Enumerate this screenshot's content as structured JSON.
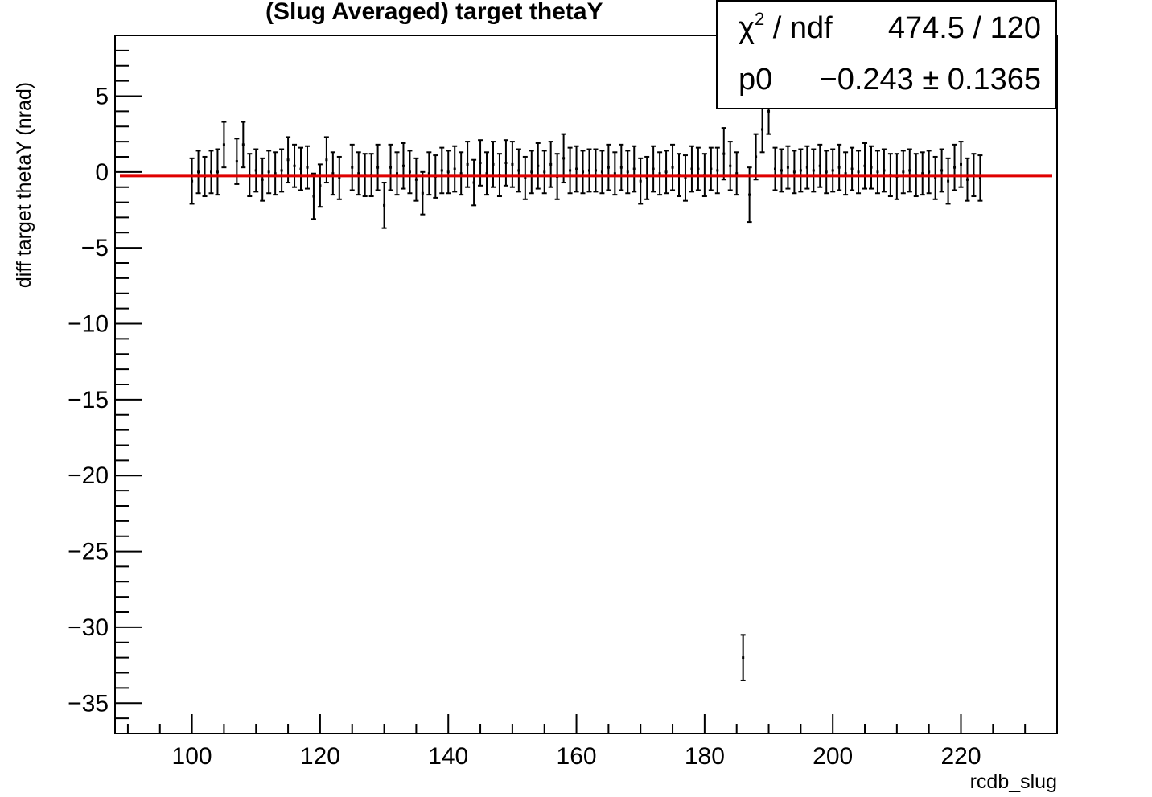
{
  "title": "(Slug Averaged) target thetaY",
  "chart_data": {
    "type": "scatter",
    "xlabel": "rcdb_slug",
    "ylabel": "diff target thetaY (nrad)",
    "xlim": [
      88,
      235
    ],
    "ylim": [
      -37,
      9
    ],
    "xticks": [
      100,
      120,
      140,
      160,
      180,
      200,
      220
    ],
    "yticks": [
      5,
      0,
      -5,
      -10,
      -15,
      -20,
      -25,
      -30,
      -35
    ],
    "ytick_labels": [
      "5",
      "0",
      "−5",
      "−10",
      "−15",
      "−20",
      "−25",
      "−30",
      "−35"
    ],
    "grid": false,
    "series": [
      {
        "points": [
          [
            100,
            -0.6,
            1.5
          ],
          [
            101,
            0.0,
            1.4
          ],
          [
            102,
            -0.3,
            1.3
          ],
          [
            103,
            0.0,
            1.4
          ],
          [
            104,
            0.0,
            1.5
          ],
          [
            105,
            1.8,
            1.5
          ],
          [
            107,
            0.7,
            1.5
          ],
          [
            108,
            1.8,
            1.5
          ],
          [
            109,
            -0.2,
            1.4
          ],
          [
            110,
            0.1,
            1.4
          ],
          [
            111,
            -0.5,
            1.4
          ],
          [
            112,
            0.0,
            1.4
          ],
          [
            113,
            -0.1,
            1.4
          ],
          [
            114,
            0.1,
            1.4
          ],
          [
            115,
            0.8,
            1.5
          ],
          [
            116,
            0.4,
            1.4
          ],
          [
            117,
            0.2,
            1.4
          ],
          [
            118,
            0.3,
            1.4
          ],
          [
            119,
            -1.6,
            1.5
          ],
          [
            120,
            -0.9,
            1.4
          ],
          [
            121,
            0.8,
            1.5
          ],
          [
            122,
            -0.1,
            1.4
          ],
          [
            123,
            -0.4,
            1.4
          ],
          [
            125,
            0.3,
            1.5
          ],
          [
            126,
            -0.1,
            1.4
          ],
          [
            127,
            -0.2,
            1.4
          ],
          [
            128,
            -0.2,
            1.4
          ],
          [
            129,
            0.3,
            1.5
          ],
          [
            130,
            -2.2,
            1.5
          ],
          [
            131,
            0.3,
            1.5
          ],
          [
            132,
            -0.1,
            1.4
          ],
          [
            133,
            0.4,
            1.5
          ],
          [
            134,
            0.0,
            1.4
          ],
          [
            135,
            -0.5,
            1.4
          ],
          [
            136,
            -1.4,
            1.4
          ],
          [
            137,
            -0.1,
            1.4
          ],
          [
            138,
            -0.3,
            1.4
          ],
          [
            139,
            0.1,
            1.5
          ],
          [
            140,
            0.0,
            1.4
          ],
          [
            141,
            0.2,
            1.5
          ],
          [
            142,
            -0.1,
            1.4
          ],
          [
            143,
            0.5,
            1.5
          ],
          [
            144,
            -0.7,
            1.5
          ],
          [
            145,
            0.6,
            1.5
          ],
          [
            146,
            -0.1,
            1.4
          ],
          [
            147,
            0.5,
            1.5
          ],
          [
            148,
            -0.2,
            1.4
          ],
          [
            149,
            0.6,
            1.5
          ],
          [
            150,
            0.5,
            1.5
          ],
          [
            151,
            0.1,
            1.4
          ],
          [
            152,
            -0.4,
            1.4
          ],
          [
            153,
            0.0,
            1.4
          ],
          [
            154,
            0.4,
            1.5
          ],
          [
            155,
            0.0,
            1.4
          ],
          [
            156,
            0.5,
            1.5
          ],
          [
            157,
            -0.3,
            1.5
          ],
          [
            158,
            0.9,
            1.6
          ],
          [
            159,
            0.1,
            1.5
          ],
          [
            160,
            0.2,
            1.5
          ],
          [
            161,
            0.0,
            1.4
          ],
          [
            162,
            0.1,
            1.4
          ],
          [
            163,
            0.1,
            1.4
          ],
          [
            164,
            0.0,
            1.4
          ],
          [
            165,
            0.3,
            1.5
          ],
          [
            166,
            -0.1,
            1.4
          ],
          [
            167,
            0.3,
            1.5
          ],
          [
            168,
            0.0,
            1.4
          ],
          [
            169,
            0.2,
            1.5
          ],
          [
            170,
            -0.6,
            1.5
          ],
          [
            171,
            -0.4,
            1.4
          ],
          [
            172,
            0.2,
            1.5
          ],
          [
            173,
            -0.1,
            1.4
          ],
          [
            174,
            0.0,
            1.4
          ],
          [
            175,
            0.3,
            1.5
          ],
          [
            176,
            -0.2,
            1.4
          ],
          [
            177,
            -0.4,
            1.5
          ],
          [
            178,
            0.2,
            1.5
          ],
          [
            179,
            0.2,
            1.4
          ],
          [
            180,
            -0.2,
            1.4
          ],
          [
            181,
            0.2,
            1.4
          ],
          [
            182,
            0.1,
            1.5
          ],
          [
            183,
            1.2,
            1.7
          ],
          [
            184,
            0.4,
            1.6
          ],
          [
            185,
            -0.1,
            1.4
          ],
          [
            186,
            -32.0,
            1.5
          ],
          [
            187,
            -1.5,
            1.8
          ],
          [
            188,
            1.0,
            1.5
          ],
          [
            189,
            2.8,
            1.5
          ],
          [
            190,
            4.0,
            1.5
          ],
          [
            191,
            0.2,
            1.4
          ],
          [
            192,
            0.1,
            1.4
          ],
          [
            193,
            0.3,
            1.4
          ],
          [
            194,
            0.0,
            1.4
          ],
          [
            195,
            0.1,
            1.4
          ],
          [
            196,
            0.3,
            1.4
          ],
          [
            197,
            0.1,
            1.4
          ],
          [
            198,
            0.4,
            1.4
          ],
          [
            199,
            0.0,
            1.4
          ],
          [
            200,
            0.1,
            1.4
          ],
          [
            201,
            0.3,
            1.5
          ],
          [
            202,
            -0.1,
            1.4
          ],
          [
            203,
            0.2,
            1.4
          ],
          [
            204,
            0.0,
            1.4
          ],
          [
            205,
            0.4,
            1.5
          ],
          [
            206,
            0.3,
            1.4
          ],
          [
            207,
            0.0,
            1.4
          ],
          [
            208,
            0.1,
            1.4
          ],
          [
            209,
            -0.2,
            1.4
          ],
          [
            210,
            -0.3,
            1.5
          ],
          [
            211,
            0.0,
            1.4
          ],
          [
            212,
            0.1,
            1.4
          ],
          [
            213,
            -0.2,
            1.4
          ],
          [
            214,
            -0.1,
            1.4
          ],
          [
            215,
            0.0,
            1.4
          ],
          [
            216,
            -0.4,
            1.4
          ],
          [
            217,
            0.1,
            1.4
          ],
          [
            218,
            -0.6,
            1.5
          ],
          [
            219,
            0.3,
            1.5
          ],
          [
            220,
            0.5,
            1.5
          ],
          [
            221,
            -0.5,
            1.4
          ],
          [
            222,
            -0.2,
            1.4
          ],
          [
            223,
            -0.4,
            1.5
          ]
        ]
      }
    ],
    "fit": {
      "p0": -0.243,
      "x_range": [
        88,
        235
      ],
      "color": "#e00000"
    }
  },
  "statbox": {
    "row1_name_sym": "χ",
    "row1_name_sup": "2",
    "row1_name_rest": " / ndf",
    "row1_value": "474.5 / 120",
    "row2_name": "p0",
    "row2_value": "−0.243 ± 0.1365"
  }
}
